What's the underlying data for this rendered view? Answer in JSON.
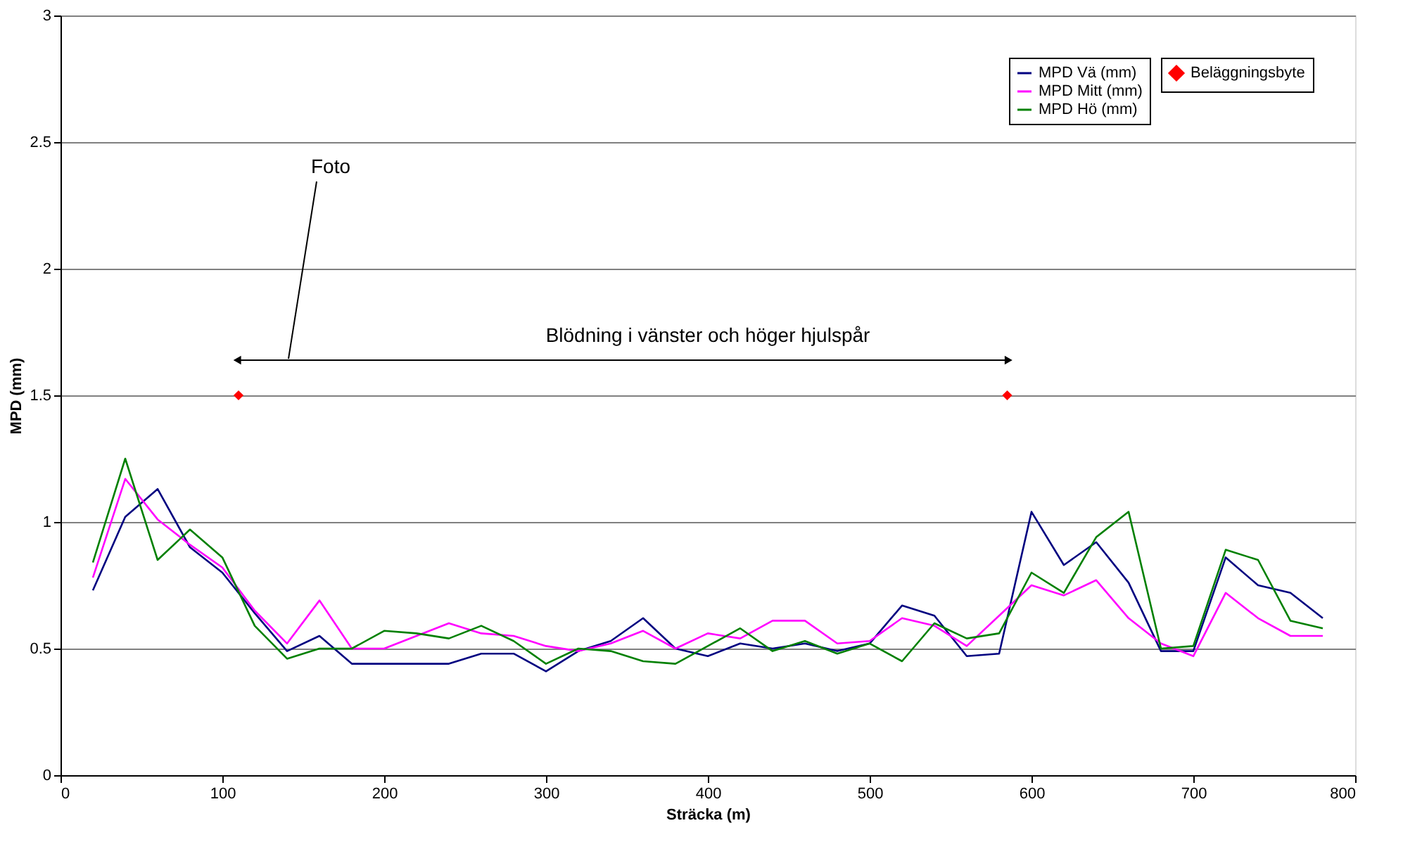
{
  "chart_data": {
    "type": "line",
    "xlabel": "Sträcka (m)",
    "ylabel": "MPD (mm)",
    "x": [
      20,
      40,
      60,
      80,
      100,
      120,
      140,
      160,
      180,
      200,
      220,
      240,
      260,
      280,
      300,
      320,
      340,
      360,
      380,
      400,
      420,
      440,
      460,
      480,
      500,
      520,
      540,
      560,
      580,
      600,
      620,
      640,
      660,
      680,
      700,
      720,
      740,
      760,
      780
    ],
    "series": [
      {
        "name": "MPD Vä (mm)",
        "color": "#000080",
        "values": [
          0.73,
          1.02,
          1.13,
          0.9,
          0.8,
          0.64,
          0.49,
          0.55,
          0.44,
          0.44,
          0.44,
          0.44,
          0.48,
          0.48,
          0.41,
          0.49,
          0.53,
          0.62,
          0.5,
          0.47,
          0.52,
          0.5,
          0.52,
          0.49,
          0.52,
          0.67,
          0.63,
          0.47,
          0.48,
          1.04,
          0.83,
          0.92,
          0.76,
          0.49,
          0.49,
          0.86,
          0.75,
          0.72,
          0.62
        ]
      },
      {
        "name": "MPD Mitt (mm)",
        "color": "#ff00ff",
        "values": [
          0.78,
          1.17,
          1.01,
          0.91,
          0.82,
          0.65,
          0.52,
          0.69,
          0.5,
          0.5,
          0.55,
          0.6,
          0.56,
          0.55,
          0.51,
          0.49,
          0.52,
          0.57,
          0.5,
          0.56,
          0.54,
          0.61,
          0.61,
          0.52,
          0.53,
          0.62,
          0.59,
          0.51,
          0.63,
          0.75,
          0.71,
          0.77,
          0.62,
          0.52,
          0.47,
          0.72,
          0.62,
          0.55,
          0.55
        ]
      },
      {
        "name": "MPD Hö (mm)",
        "color": "#008000",
        "values": [
          0.84,
          1.25,
          0.85,
          0.97,
          0.86,
          0.59,
          0.46,
          0.5,
          0.5,
          0.57,
          0.56,
          0.54,
          0.59,
          0.53,
          0.44,
          0.5,
          0.49,
          0.45,
          0.44,
          0.51,
          0.58,
          0.49,
          0.53,
          0.48,
          0.52,
          0.45,
          0.6,
          0.54,
          0.56,
          0.8,
          0.72,
          0.94,
          1.04,
          0.5,
          0.51,
          0.89,
          0.85,
          0.61,
          0.58
        ]
      },
      {
        "name": "Beläggningsbyte",
        "type": "scatter",
        "marker": "diamond",
        "color": "#ff0000",
        "x": [
          110,
          585
        ],
        "values": [
          1.5,
          1.5
        ]
      }
    ],
    "annotations": [
      "Foto",
      "Blödning i vänster och höger hjulspår"
    ],
    "xlim": [
      0,
      800
    ],
    "xticks": [
      0,
      100,
      200,
      300,
      400,
      500,
      600,
      700,
      800
    ],
    "ylim": [
      0,
      3
    ],
    "yticks": [
      {
        "value": 0,
        "label": "0"
      },
      0.5,
      {
        "value": 1,
        "label": "1"
      },
      1.5,
      {
        "value": 2,
        "label": "2"
      },
      2.5,
      {
        "value": 3,
        "label": "3"
      }
    ],
    "grid": "y",
    "legend": "top right",
    "marker": "none",
    "line_style": "solid"
  }
}
